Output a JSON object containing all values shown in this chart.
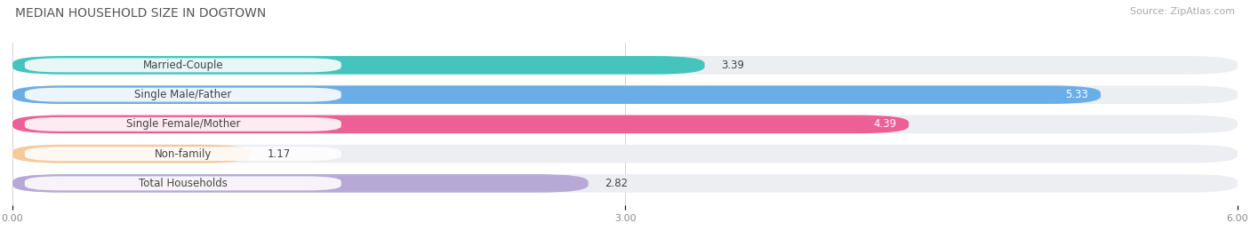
{
  "title": "MEDIAN HOUSEHOLD SIZE IN DOGTOWN",
  "source": "Source: ZipAtlas.com",
  "categories": [
    "Married-Couple",
    "Single Male/Father",
    "Single Female/Mother",
    "Non-family",
    "Total Households"
  ],
  "values": [
    3.39,
    5.33,
    4.39,
    1.17,
    2.82
  ],
  "bar_colors": [
    "#45c4be",
    "#6aaee8",
    "#ee5f96",
    "#f5c99a",
    "#b8a8d8"
  ],
  "value_colors": [
    "#444444",
    "#ffffff",
    "#ffffff",
    "#444444",
    "#444444"
  ],
  "bar_bg_color": "#edeef2",
  "xlim": [
    0,
    6.0
  ],
  "xticks": [
    0.0,
    3.0,
    6.0
  ],
  "xtick_labels": [
    "0.00",
    "3.00",
    "6.00"
  ],
  "title_fontsize": 10,
  "source_fontsize": 8,
  "label_fontsize": 8.5,
  "value_fontsize": 8.5,
  "background_color": "#ffffff",
  "bar_height": 0.62,
  "rounding_size": 0.25,
  "label_bg_color": "#ffffff",
  "label_bg_alpha": 0.85
}
